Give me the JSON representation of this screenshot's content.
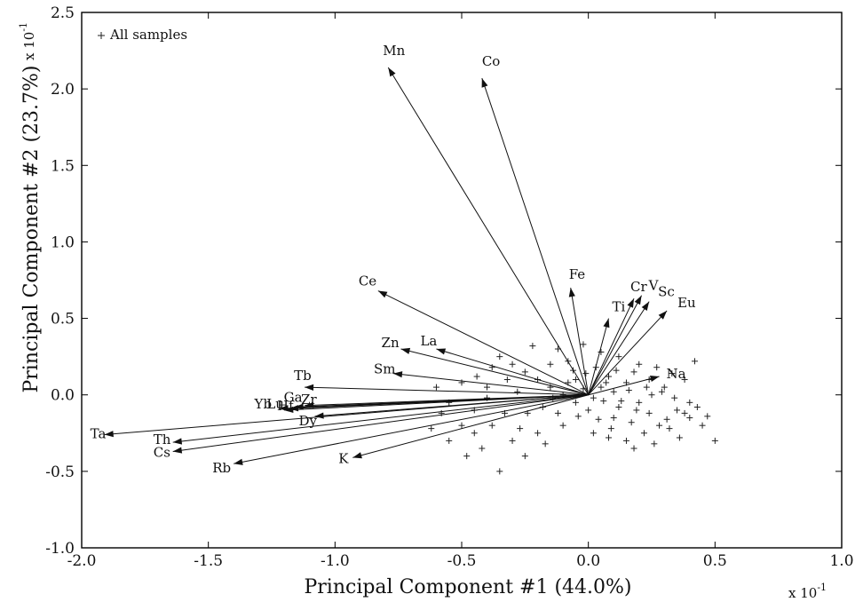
{
  "chart_data": {
    "type": "scatter",
    "subtype": "biplot",
    "xlabel": "Principal Component #1 (44.0%)",
    "ylabel": "Principal Component #2 (23.7%)",
    "x_multiplier": "x 10",
    "x_multiplier_exp": "-1",
    "y_multiplier": "x 10",
    "y_multiplier_exp": "-1",
    "xlim": [
      -2.0,
      1.0
    ],
    "ylim": [
      -1.0,
      2.5
    ],
    "x_ticks": [
      -2.0,
      -1.5,
      -1.0,
      -0.5,
      0.0,
      0.5,
      1.0
    ],
    "x_tick_labels": [
      "-2.0",
      "-1.5",
      "-1.0",
      "-0.5",
      "0.0",
      "0.5",
      "1.0"
    ],
    "y_ticks": [
      -1.0,
      -0.5,
      0.0,
      0.5,
      1.0,
      1.5,
      2.0,
      2.5
    ],
    "y_tick_labels": [
      "-1.0",
      "-0.5",
      "0.0",
      "0.5",
      "1.0",
      "1.5",
      "2.0",
      "2.5"
    ],
    "grid": false,
    "legend": {
      "placement": "top-left",
      "entries": [
        "All samples"
      ]
    },
    "vectors": [
      {
        "name": "Mn",
        "x": -0.79,
        "y": 2.14
      },
      {
        "name": "Co",
        "x": -0.42,
        "y": 2.07
      },
      {
        "name": "Fe",
        "x": -0.07,
        "y": 0.7
      },
      {
        "name": "Ti",
        "x": 0.08,
        "y": 0.5
      },
      {
        "name": "Cr",
        "x": 0.18,
        "y": 0.63
      },
      {
        "name": "V",
        "x": 0.21,
        "y": 0.65
      },
      {
        "name": "Sc",
        "x": 0.24,
        "y": 0.61
      },
      {
        "name": "Eu",
        "x": 0.31,
        "y": 0.55
      },
      {
        "name": "Na",
        "x": 0.28,
        "y": 0.12
      },
      {
        "name": "Ce",
        "x": -0.83,
        "y": 0.68
      },
      {
        "name": "Zn",
        "x": -0.74,
        "y": 0.3
      },
      {
        "name": "La",
        "x": -0.6,
        "y": 0.3
      },
      {
        "name": "Sm",
        "x": -0.77,
        "y": 0.14
      },
      {
        "name": "Tb",
        "x": -1.12,
        "y": 0.05
      },
      {
        "name": "Yb",
        "x": -1.22,
        "y": -0.09
      },
      {
        "name": "Lu",
        "x": -1.2,
        "y": -0.1
      },
      {
        "name": "Hf",
        "x": -1.18,
        "y": -0.09
      },
      {
        "name": "Ga",
        "x": -1.16,
        "y": -0.08
      },
      {
        "name": "Zr",
        "x": -1.12,
        "y": -0.07
      },
      {
        "name": "Dy",
        "x": -1.08,
        "y": -0.14
      },
      {
        "name": "Ta",
        "x": -1.91,
        "y": -0.26
      },
      {
        "name": "Th",
        "x": -1.64,
        "y": -0.31
      },
      {
        "name": "Cs",
        "x": -1.64,
        "y": -0.37
      },
      {
        "name": "Rb",
        "x": -1.4,
        "y": -0.45
      },
      {
        "name": "K",
        "x": -0.93,
        "y": -0.41
      }
    ],
    "samples": [
      [
        0.05,
        0.05
      ],
      [
        0.1,
        0.02
      ],
      [
        0.02,
        -0.02
      ],
      [
        0.15,
        0.08
      ],
      [
        0.2,
        -0.05
      ],
      [
        0.25,
        0.0
      ],
      [
        0.12,
        -0.08
      ],
      [
        -0.05,
        0.1
      ],
      [
        0.08,
        0.12
      ],
      [
        0.18,
        0.15
      ],
      [
        0.3,
        0.05
      ],
      [
        0.35,
        -0.1
      ],
      [
        0.4,
        -0.15
      ],
      [
        0.45,
        -0.2
      ],
      [
        0.5,
        -0.3
      ],
      [
        0.42,
        0.22
      ],
      [
        0.38,
        0.1
      ],
      [
        0.28,
        -0.2
      ],
      [
        0.22,
        -0.25
      ],
      [
        0.15,
        -0.3
      ],
      [
        0.1,
        -0.15
      ],
      [
        0.0,
        -0.1
      ],
      [
        -0.05,
        -0.05
      ],
      [
        -0.1,
        0.0
      ],
      [
        -0.15,
        0.05
      ],
      [
        -0.2,
        0.1
      ],
      [
        -0.25,
        0.15
      ],
      [
        -0.3,
        0.2
      ],
      [
        -0.35,
        0.25
      ],
      [
        -0.22,
        0.32
      ],
      [
        -0.12,
        0.3
      ],
      [
        -0.02,
        0.33
      ],
      [
        0.05,
        0.28
      ],
      [
        0.12,
        0.25
      ],
      [
        -0.4,
        0.05
      ],
      [
        -0.45,
        -0.1
      ],
      [
        -0.5,
        -0.2
      ],
      [
        -0.55,
        -0.05
      ],
      [
        -0.6,
        0.05
      ],
      [
        -0.3,
        -0.3
      ],
      [
        -0.25,
        -0.4
      ],
      [
        -0.35,
        -0.5
      ],
      [
        -0.42,
        -0.35
      ],
      [
        -0.48,
        -0.4
      ],
      [
        -0.55,
        -0.3
      ],
      [
        -0.2,
        -0.25
      ],
      [
        -0.1,
        -0.2
      ],
      [
        0.02,
        -0.25
      ],
      [
        0.08,
        -0.28
      ],
      [
        0.18,
        -0.35
      ],
      [
        0.26,
        -0.32
      ],
      [
        0.32,
        -0.22
      ],
      [
        0.36,
        -0.28
      ],
      [
        0.4,
        -0.05
      ],
      [
        0.33,
        0.14
      ],
      [
        0.27,
        0.18
      ],
      [
        0.2,
        0.2
      ],
      [
        0.16,
        0.03
      ],
      [
        0.06,
        -0.04
      ],
      [
        -0.02,
        0.04
      ],
      [
        -0.08,
        0.08
      ],
      [
        -0.14,
        -0.02
      ],
      [
        -0.18,
        -0.08
      ],
      [
        -0.24,
        -0.12
      ],
      [
        -0.28,
        0.02
      ],
      [
        -0.32,
        0.1
      ],
      [
        -0.38,
        0.18
      ],
      [
        -0.44,
        0.12
      ],
      [
        -0.5,
        0.08
      ],
      [
        -0.58,
        -0.12
      ],
      [
        -0.62,
        -0.22
      ],
      [
        -0.45,
        -0.25
      ],
      [
        -0.38,
        -0.2
      ],
      [
        -0.15,
        0.2
      ],
      [
        -0.08,
        0.22
      ],
      [
        0.03,
        0.18
      ],
      [
        0.11,
        0.16
      ],
      [
        0.24,
        0.1
      ],
      [
        0.29,
        0.02
      ],
      [
        0.34,
        -0.02
      ],
      [
        0.38,
        -0.12
      ],
      [
        0.43,
        -0.08
      ],
      [
        0.47,
        -0.14
      ],
      [
        0.31,
        -0.16
      ],
      [
        0.24,
        -0.12
      ],
      [
        0.17,
        -0.18
      ],
      [
        0.09,
        -0.22
      ],
      [
        0.04,
        -0.16
      ],
      [
        -0.04,
        -0.14
      ],
      [
        -0.12,
        -0.12
      ],
      [
        -0.17,
        -0.32
      ],
      [
        -0.27,
        -0.22
      ],
      [
        -0.33,
        -0.12
      ],
      [
        -0.4,
        -0.02
      ],
      [
        0.13,
        -0.04
      ],
      [
        0.07,
        0.08
      ],
      [
        -0.01,
        0.14
      ],
      [
        -0.06,
        0.16
      ],
      [
        0.19,
        -0.1
      ],
      [
        0.23,
        0.05
      ]
    ]
  }
}
